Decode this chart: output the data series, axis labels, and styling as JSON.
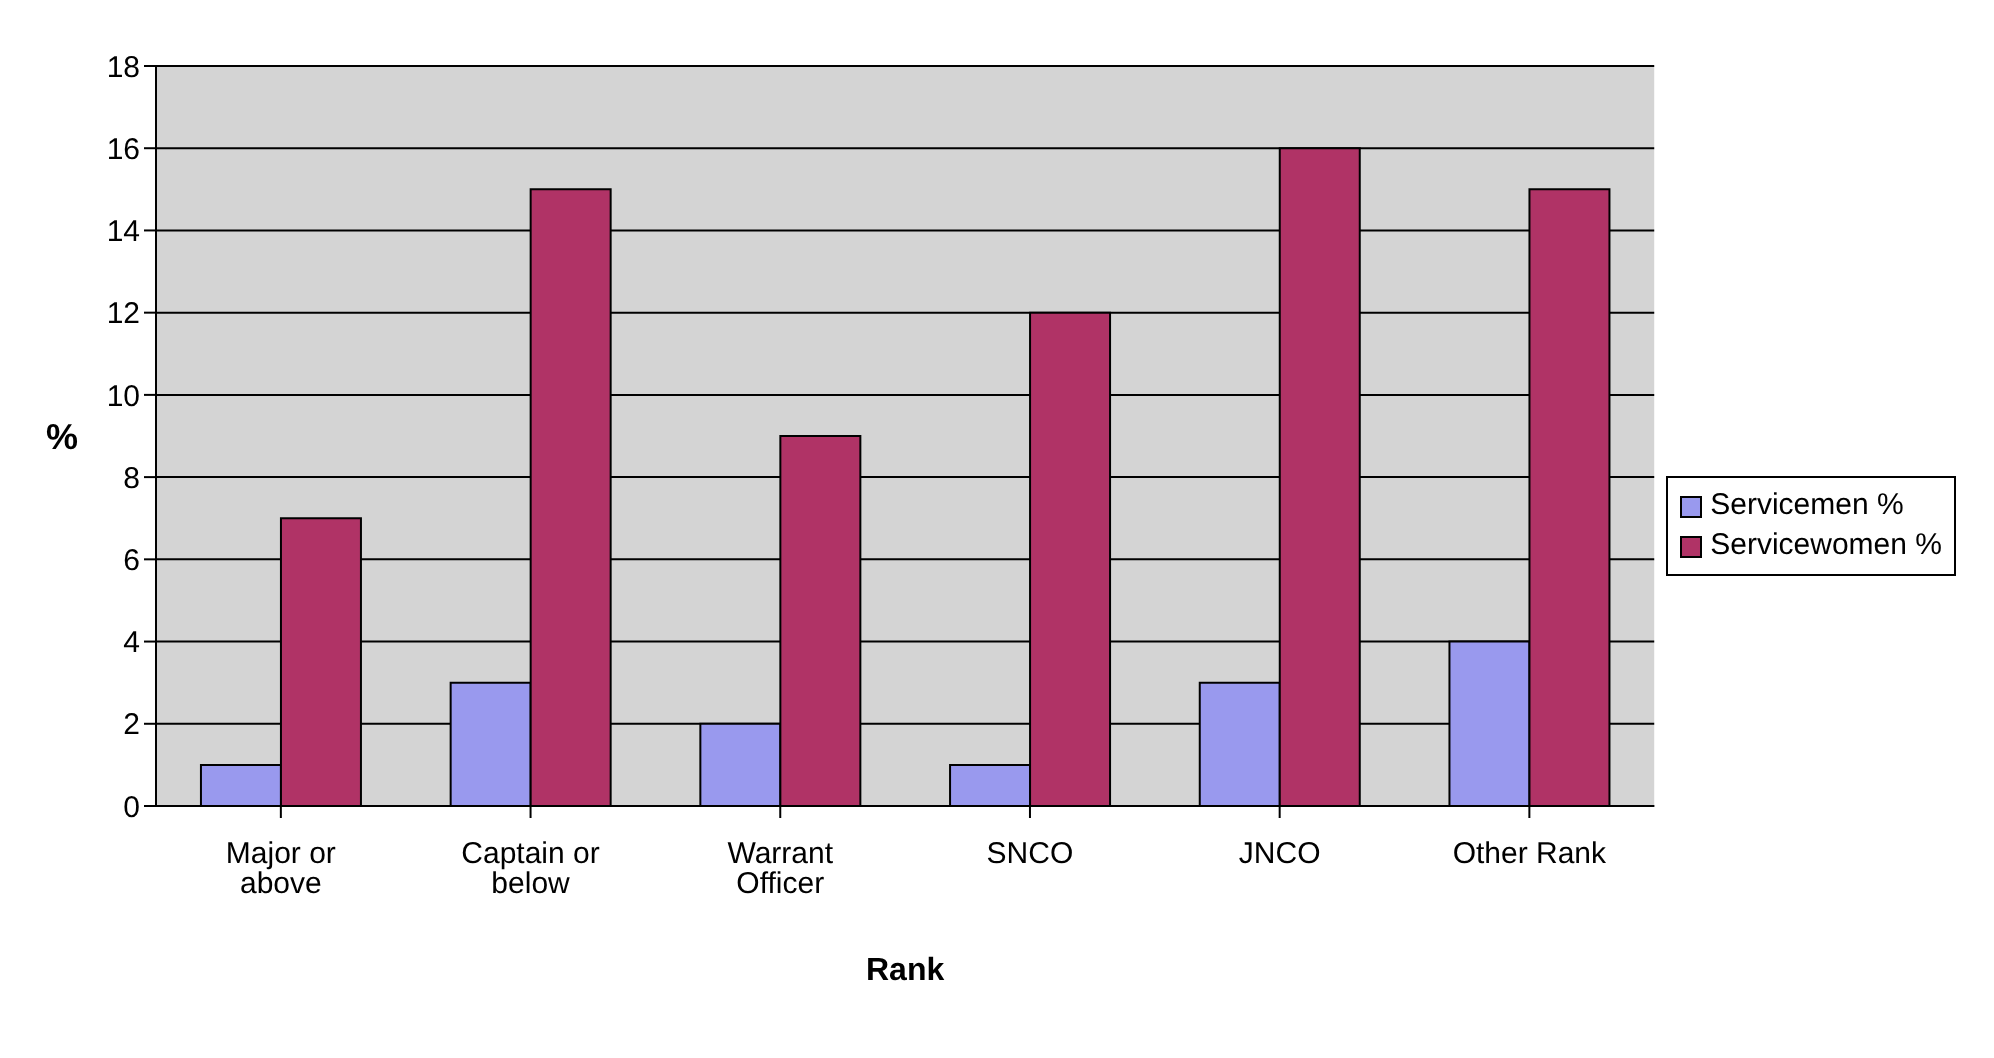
{
  "chart_data": {
    "type": "bar",
    "xlabel": "Rank",
    "ylabel": "%",
    "categories": [
      "Major or above",
      "Captain or below",
      "Warrant Officer",
      "SNCO",
      "JNCO",
      "Other Rank"
    ],
    "series": [
      {
        "name": "Servicemen %",
        "color": "#9999ee",
        "values": [
          1,
          3,
          2,
          1,
          3,
          4
        ]
      },
      {
        "name": "Servicewomen %",
        "color": "#b03366",
        "values": [
          7,
          15,
          9,
          12,
          16,
          15
        ]
      }
    ],
    "ylim": [
      0,
      18
    ],
    "yticks": [
      0,
      2,
      4,
      6,
      8,
      10,
      12,
      14,
      16,
      18
    ],
    "grid": "y",
    "legend": "right"
  }
}
